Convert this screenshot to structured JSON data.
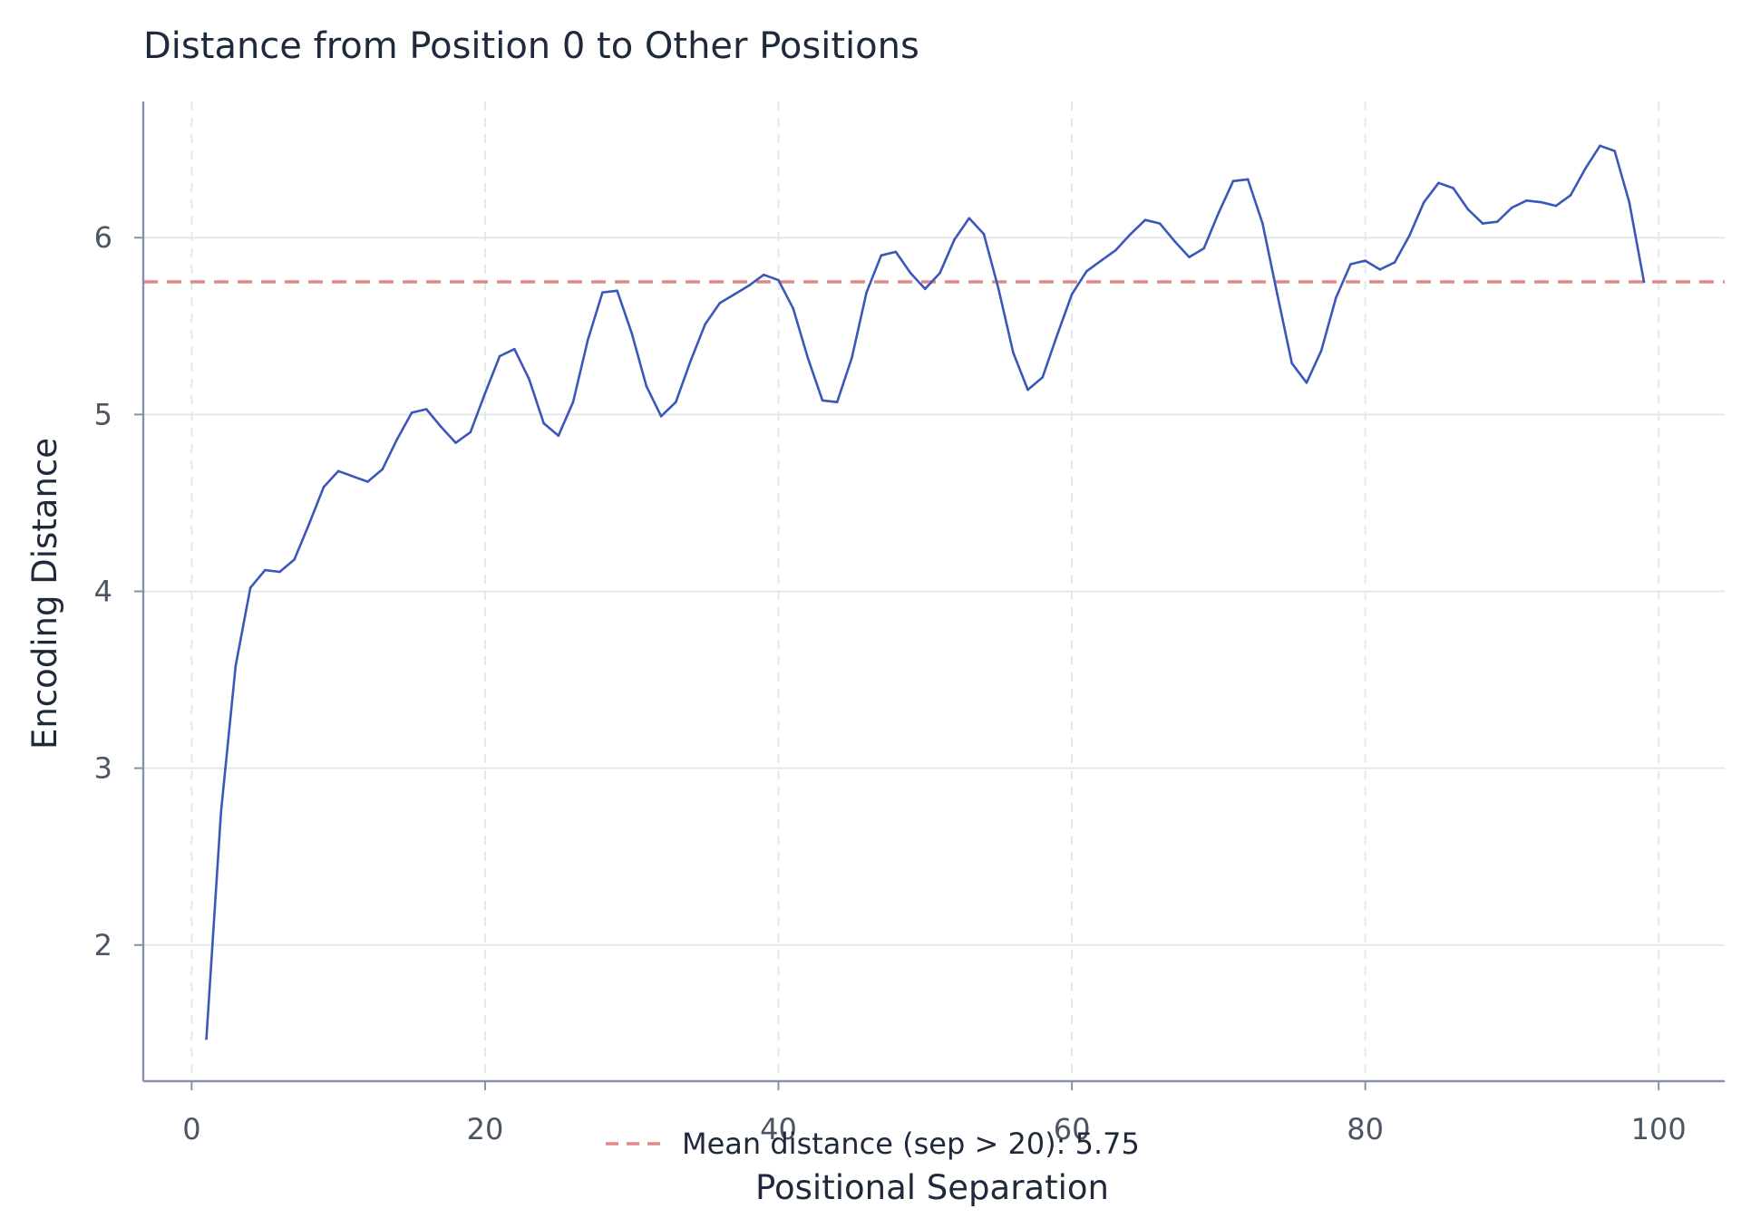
{
  "chart_data": {
    "type": "line",
    "title": "Distance from Position 0 to Other Positions",
    "xlabel": "Positional Separation",
    "ylabel": "Encoding Distance",
    "xlim": [
      -3.3,
      104.5
    ],
    "ylim": [
      1.23,
      6.77
    ],
    "xticks": [
      0,
      20,
      40,
      60,
      80,
      100
    ],
    "yticks": [
      2,
      3,
      4,
      5,
      6
    ],
    "grid": true,
    "legend_position": "bottom-center",
    "colors": {
      "line": "#3b57b8",
      "mean": "#e08a88",
      "grid": "#e5e7eb",
      "axis": "#8792aa"
    },
    "series": [
      {
        "name": "",
        "x": [
          1,
          2,
          3,
          4,
          5,
          6,
          7,
          8,
          9,
          10,
          11,
          12,
          13,
          14,
          15,
          16,
          17,
          18,
          19,
          20,
          21,
          22,
          23,
          24,
          25,
          26,
          27,
          28,
          29,
          30,
          31,
          32,
          33,
          34,
          35,
          36,
          37,
          38,
          39,
          40,
          41,
          42,
          43,
          44,
          45,
          46,
          47,
          48,
          49,
          50,
          51,
          52,
          53,
          54,
          55,
          56,
          57,
          58,
          59,
          60,
          61,
          62,
          63,
          64,
          65,
          66,
          67,
          68,
          69,
          70,
          71,
          72,
          73,
          74,
          75,
          76,
          77,
          78,
          79,
          80,
          81,
          82,
          83,
          84,
          85,
          86,
          87,
          88,
          89,
          90,
          91,
          92,
          93,
          94,
          95,
          96,
          97,
          98,
          99
        ],
        "y": [
          1.47,
          2.75,
          3.58,
          4.02,
          4.12,
          4.11,
          4.18,
          4.38,
          4.59,
          4.68,
          4.65,
          4.62,
          4.69,
          4.86,
          5.01,
          5.03,
          4.93,
          4.84,
          4.9,
          5.12,
          5.33,
          5.37,
          5.2,
          4.95,
          4.88,
          5.07,
          5.42,
          5.69,
          5.7,
          5.46,
          5.16,
          4.99,
          5.07,
          5.3,
          5.51,
          5.63,
          5.68,
          5.73,
          5.79,
          5.76,
          5.6,
          5.32,
          5.08,
          5.07,
          5.32,
          5.69,
          5.9,
          5.92,
          5.8,
          5.71,
          5.8,
          5.99,
          6.11,
          6.02,
          5.71,
          5.35,
          5.14,
          5.21,
          5.45,
          5.68,
          5.81,
          5.87,
          5.93,
          6.02,
          6.1,
          6.08,
          5.98,
          5.89,
          5.94,
          6.14,
          6.32,
          6.33,
          6.08,
          5.68,
          5.29,
          5.18,
          5.36,
          5.66,
          5.85,
          5.87,
          5.82,
          5.86,
          6.01,
          6.2,
          6.31,
          6.28,
          6.16,
          6.08,
          6.09,
          6.17,
          6.21,
          6.2,
          6.18,
          6.24,
          6.39,
          6.52,
          6.49,
          6.2,
          5.75
        ]
      }
    ],
    "reference_lines": [
      {
        "name": "Mean distance (sep > 20): 5.75",
        "y": 5.75,
        "style": "dashed"
      }
    ]
  }
}
